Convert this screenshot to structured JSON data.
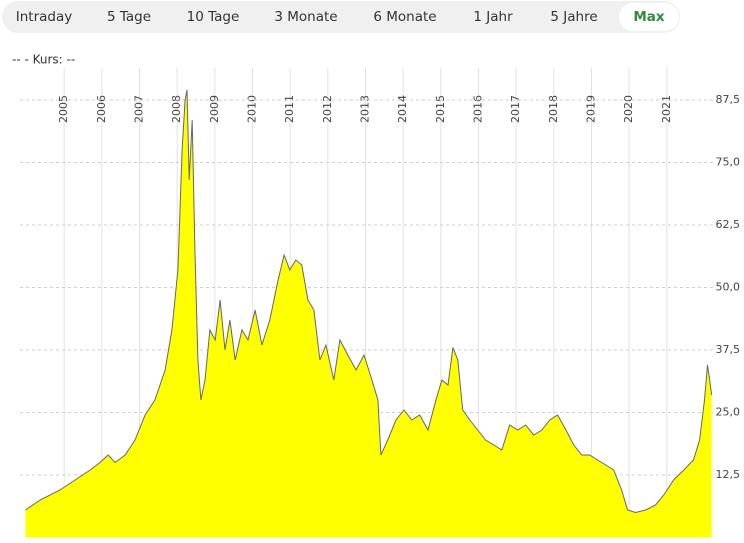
{
  "tabs": [
    "Intraday",
    "5 Tage",
    "10 Tage",
    "3 Monate",
    "6 Monate",
    "1 Jahr",
    "5 Jahre",
    "Max"
  ],
  "chart_data": {
    "type": "area",
    "subtitle": "--  - Kurs: --",
    "x": [
      2003.97,
      2004.36,
      2004.89,
      2005.29,
      2005.69,
      2005.95,
      2006.17,
      2006.35,
      2006.62,
      2006.88,
      2007.15,
      2007.41,
      2007.68,
      2007.86,
      2008.02,
      2008.13,
      2008.21,
      2008.26,
      2008.32,
      2008.4,
      2008.47,
      2008.55,
      2008.63,
      2008.74,
      2008.87,
      2009.01,
      2009.14,
      2009.27,
      2009.4,
      2009.54,
      2009.72,
      2009.88,
      2010.07,
      2010.25,
      2010.46,
      2010.68,
      2010.84,
      2010.99,
      2011.15,
      2011.31,
      2011.47,
      2011.63,
      2011.79,
      2011.95,
      2012.16,
      2012.32,
      2012.53,
      2012.75,
      2012.96,
      2013.17,
      2013.33,
      2013.41,
      2013.59,
      2013.81,
      2014.02,
      2014.23,
      2014.44,
      2014.66,
      2014.87,
      2015.03,
      2015.19,
      2015.32,
      2015.45,
      2015.58,
      2015.77,
      2015.98,
      2016.19,
      2016.41,
      2016.62,
      2016.83,
      2017.04,
      2017.25,
      2017.47,
      2017.68,
      2017.89,
      2018.1,
      2018.32,
      2018.53,
      2018.74,
      2018.95,
      2019.16,
      2019.38,
      2019.59,
      2019.8,
      2019.96,
      2020.17,
      2020.44,
      2020.7,
      2020.92,
      2021.18,
      2021.45,
      2021.71,
      2021.87,
      2022.0,
      2022.08,
      2022.14,
      2022.19
    ],
    "values": [
      5.5,
      7.5,
      9.5,
      11.5,
      13.5,
      15,
      16.5,
      15,
      16.5,
      19.5,
      24.5,
      27.5,
      33.5,
      41.5,
      53.5,
      77.5,
      87.5,
      89.5,
      71.5,
      83.5,
      57.5,
      35.5,
      27.5,
      31.5,
      41.5,
      39.5,
      47.5,
      37.5,
      43.5,
      35.5,
      41.5,
      39.5,
      45.5,
      38.5,
      43.5,
      51.5,
      56.5,
      53.5,
      55.5,
      54.5,
      47.5,
      45.5,
      35.5,
      38.5,
      31.5,
      39.5,
      36.5,
      33.5,
      36.5,
      31.5,
      27.5,
      16.5,
      19.5,
      23.5,
      25.5,
      23.5,
      24.5,
      21.5,
      27.5,
      31.5,
      30.5,
      38,
      35.5,
      25.5,
      23.5,
      21.5,
      19.5,
      18.5,
      17.5,
      22.5,
      21.5,
      22.5,
      20.5,
      21.5,
      23.5,
      24.5,
      21.5,
      18.5,
      16.5,
      16.5,
      15.5,
      14.5,
      13.5,
      9.5,
      5.5,
      5,
      5.5,
      6.5,
      8.5,
      11.5,
      13.5,
      15.5,
      19.5,
      27.5,
      34.5,
      31.5,
      28.5
    ],
    "color": "#ffff00",
    "line_color": "#666666",
    "xlim": [
      2003.96,
      2022.2
    ],
    "xticks": [
      2005,
      2006,
      2007,
      2008,
      2009,
      2010,
      2011,
      2012,
      2013,
      2014,
      2015,
      2016,
      2017,
      2018,
      2019,
      2020,
      2021
    ],
    "ylim": [
      0,
      94
    ],
    "yticks": [
      {
        "value": 12.5,
        "label": "12,5"
      },
      {
        "value": 25,
        "label": "25,0"
      },
      {
        "value": 37.5,
        "label": "37,5"
      },
      {
        "value": 50,
        "label": "50,0"
      },
      {
        "value": 62.5,
        "label": "62,5"
      },
      {
        "value": 75,
        "label": "75,0"
      },
      {
        "value": 87.5,
        "label": "87,5"
      }
    ],
    "grid": true
  }
}
